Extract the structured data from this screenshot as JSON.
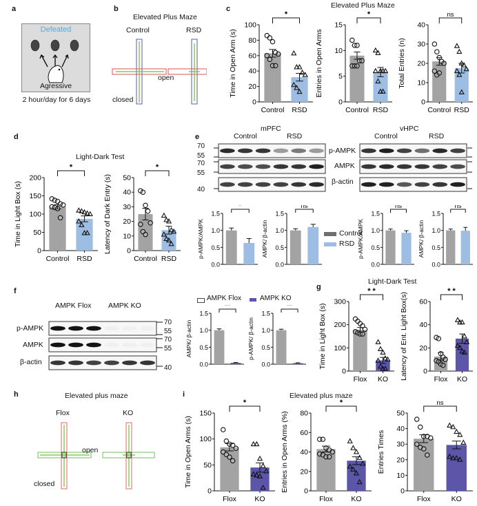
{
  "colors": {
    "control": "#a3a3a3",
    "rsd": "#9dbde3",
    "ko": "#5b56a8",
    "flox": "#a3a3a3",
    "defeated": "#5aa7d8",
    "maze_open_b": "#d9534f",
    "maze_closed_b": "#5a5aa8",
    "maze_h": "#6bbf59",
    "maze_v": "#e26a5a",
    "track": "#6bbf3a"
  },
  "panels": {
    "a": {
      "label": "a",
      "defeated": "Defeated",
      "aggressive": "Agressive",
      "caption": "2 hour/day for 6 days"
    },
    "b": {
      "label": "b",
      "title": "Elevated Plus Maze",
      "groups": [
        "Control",
        "RSD"
      ],
      "open": "open",
      "closed": "closed"
    },
    "c": {
      "label": "c",
      "title": "Elevated Plus Maze"
    },
    "d": {
      "label": "d",
      "title": "Light-Dark Test"
    },
    "e": {
      "label": "e",
      "regions": [
        "mPFC",
        "vHPC"
      ],
      "groups": [
        "Control",
        "RSD"
      ],
      "bands": [
        "p-AMPK",
        "AMPK",
        "β-actin"
      ],
      "markers": [
        "70",
        "55",
        "70",
        "55",
        "40"
      ],
      "legend": [
        "Control",
        "RSD"
      ]
    },
    "f": {
      "label": "f",
      "groups": [
        "AMPK Flox",
        "AMPK KO"
      ],
      "bands": [
        "p-AMPK",
        "AMPK",
        "β-actin"
      ],
      "markers": [
        "70",
        "55",
        "70",
        "55",
        "40"
      ],
      "legend": [
        "AMPK Flox",
        "AMPK KO"
      ]
    },
    "g": {
      "label": "g",
      "title": "Light-Dark Test"
    },
    "h": {
      "label": "h",
      "title": "Elevated plus maze",
      "groups": [
        "Flox",
        "KO"
      ],
      "open": "open",
      "closed": "closed"
    },
    "i": {
      "label": "i",
      "title": "Elevated plus maze"
    }
  },
  "chart_data": [
    {
      "id": "c1",
      "type": "bar",
      "ylabel": "Time in Open Arm (s)",
      "categories": [
        "Control",
        "RSD"
      ],
      "values": [
        63,
        32
      ],
      "sem": [
        5,
        5
      ],
      "ylim": [
        0,
        100
      ],
      "ticks": [
        0,
        20,
        40,
        60,
        80,
        100
      ],
      "sig": "*",
      "points": [
        [
          86,
          83,
          78,
          64,
          62,
          60,
          55,
          47,
          47
        ],
        [
          63,
          45,
          45,
          38,
          35,
          22,
          18,
          13
        ]
      ]
    },
    {
      "id": "c2",
      "type": "bar",
      "ylabel": "Entries in Open Arms",
      "categories": [
        "Control",
        "RSD"
      ],
      "values": [
        9,
        5.8
      ],
      "sem": [
        0.7,
        0.9
      ],
      "ylim": [
        0,
        15
      ],
      "ticks": [
        0,
        5,
        10,
        15
      ],
      "sig": "*",
      "points": [
        [
          12,
          11,
          11,
          8,
          8,
          7,
          7,
          7
        ],
        [
          10,
          9.5,
          6,
          6,
          6,
          6,
          4,
          2,
          2
        ]
      ]
    },
    {
      "id": "c3",
      "type": "bar",
      "ylabel": "Total Entries (n)",
      "categories": [
        "Control",
        "RSD"
      ],
      "values": [
        21,
        17.5
      ],
      "sem": [
        2,
        2.5
      ],
      "ylim": [
        0,
        40
      ],
      "ticks": [
        0,
        10,
        20,
        30,
        40
      ],
      "sig": "ns",
      "points": [
        [
          30,
          26,
          23,
          21,
          20,
          16,
          14,
          15
        ],
        [
          29,
          26,
          20,
          19,
          17,
          16,
          14,
          5
        ]
      ]
    },
    {
      "id": "d1",
      "type": "bar",
      "ylabel": "Time in Light Box (s)",
      "categories": [
        "Control",
        "RSD"
      ],
      "values": [
        120,
        87
      ],
      "sem": [
        6,
        8
      ],
      "ylim": [
        0,
        200
      ],
      "ticks": [
        0,
        50,
        100,
        150,
        200
      ],
      "sig": "*",
      "points": [
        [
          142,
          138,
          135,
          128,
          125,
          120,
          118,
          115,
          90
        ],
        [
          110,
          108,
          105,
          102,
          100,
          80,
          70,
          48,
          48
        ]
      ]
    },
    {
      "id": "d2",
      "type": "bar",
      "ylabel": "Latency of Dark Entry (s)",
      "categories": [
        "Control",
        "RSD"
      ],
      "values": [
        25,
        14
      ],
      "sem": [
        4,
        2.7
      ],
      "ylim": [
        0,
        50
      ],
      "ticks": [
        0,
        10,
        20,
        30,
        40,
        50
      ],
      "sig": "*",
      "points": [
        [
          41,
          40,
          31,
          27,
          19,
          18,
          13,
          11
        ],
        [
          24,
          21,
          20,
          14,
          13,
          11,
          8,
          7,
          4.5
        ]
      ]
    },
    {
      "id": "e1",
      "type": "bar",
      "ylabel": "p-AMPK/AMPK",
      "categories": [
        "Control",
        "RSD"
      ],
      "values": [
        1.0,
        0.63
      ],
      "sem": [
        0.07,
        0.13
      ],
      "ylim": [
        0,
        1.5
      ],
      "ticks": [
        0.0,
        0.5,
        1.0,
        1.5
      ],
      "sig": "*"
    },
    {
      "id": "e2",
      "type": "bar",
      "ylabel": "AMPK/ β-actin",
      "categories": [
        "Control",
        "RSD"
      ],
      "values": [
        1.0,
        1.1
      ],
      "sem": [
        0.05,
        0.08
      ],
      "ylim": [
        0,
        1.5
      ],
      "ticks": [
        0.0,
        0.5,
        1.0,
        1.5
      ],
      "sig": "ns"
    },
    {
      "id": "e3",
      "type": "bar",
      "ylabel": "p-AMPK/AMPK",
      "categories": [
        "Control",
        "RSD"
      ],
      "values": [
        1.0,
        0.93
      ],
      "sem": [
        0.04,
        0.06
      ],
      "ylim": [
        0,
        1.5
      ],
      "ticks": [
        0.0,
        0.5,
        1.0,
        1.5
      ],
      "sig": "ns"
    },
    {
      "id": "e4",
      "type": "bar",
      "ylabel": "AMPK/ β-actin",
      "categories": [
        "Control",
        "RSD"
      ],
      "values": [
        1.0,
        0.99
      ],
      "sem": [
        0.04,
        0.1
      ],
      "ylim": [
        0,
        1.5
      ],
      "ticks": [
        0.0,
        0.5,
        1.0,
        1.5
      ],
      "sig": "ns"
    },
    {
      "id": "f1",
      "type": "bar",
      "ylabel": "AMPK/ β-actin",
      "categories": [
        "AMPK Flox",
        "AMPK KO"
      ],
      "values": [
        1.0,
        0.04
      ],
      "sem": [
        0.04,
        0.01
      ],
      "ylim": [
        0,
        1.5
      ],
      "ticks": [
        0.0,
        0.5,
        1.0,
        1.5
      ],
      "sig": "**"
    },
    {
      "id": "f2",
      "type": "bar",
      "ylabel": "p-AMPK/ β-actin",
      "categories": [
        "AMPK Flox",
        "AMPK KO"
      ],
      "values": [
        1.0,
        0.03
      ],
      "sem": [
        0.03,
        0.01
      ],
      "ylim": [
        0,
        1.5
      ],
      "ticks": [
        0.0,
        0.5,
        1.0,
        1.5
      ],
      "sig": "**"
    },
    {
      "id": "g1",
      "type": "bar",
      "ylabel": "Time in Light Box (s)",
      "categories": [
        "Flox",
        "KO"
      ],
      "values": [
        178,
        46
      ],
      "sem": [
        10,
        13
      ],
      "ylim": [
        0,
        300
      ],
      "ticks": [
        0,
        100,
        200,
        300
      ],
      "sig": "* *",
      "points": [
        [
          225,
          215,
          205,
          195,
          180,
          170,
          165,
          160,
          160
        ],
        [
          125,
          95,
          80,
          55,
          50,
          45,
          20,
          10,
          10
        ]
      ]
    },
    {
      "id": "g2",
      "type": "bar",
      "ylabel": "Latency of Ent. Light Box(s)",
      "categories": [
        "Flox",
        "KO"
      ],
      "values": [
        12.5,
        28
      ],
      "sem": [
        3.5,
        4
      ],
      "ylim": [
        0,
        60
      ],
      "ticks": [
        0,
        20,
        40,
        60
      ],
      "sig": "* *",
      "points": [
        [
          29,
          28,
          15,
          12,
          10,
          9,
          8,
          6,
          5
        ],
        [
          44,
          42,
          42,
          30,
          25,
          22,
          20,
          17,
          16
        ]
      ]
    },
    {
      "id": "i1",
      "type": "bar",
      "ylabel": "Time in Open Arms (s)",
      "categories": [
        "Flox",
        "KO"
      ],
      "values": [
        84,
        45
      ],
      "sem": [
        7,
        9
      ],
      "ylim": [
        0,
        150
      ],
      "ticks": [
        0,
        50,
        100,
        150
      ],
      "sig": "*",
      "points": [
        [
          118,
          96,
          90,
          88,
          82,
          75,
          70,
          65,
          58
        ],
        [
          90,
          90,
          62,
          48,
          38,
          32,
          30,
          28,
          6
        ]
      ]
    },
    {
      "id": "i2",
      "type": "bar",
      "ylabel": "Entries in Open Arms (%)",
      "categories": [
        "Flox",
        "KO"
      ],
      "values": [
        43,
        31
      ],
      "sem": [
        3,
        4
      ],
      "ylim": [
        0,
        80
      ],
      "ticks": [
        0,
        20,
        40,
        60,
        80
      ],
      "sig": "*",
      "points": [
        [
          53,
          53,
          44,
          42,
          40,
          38,
          37,
          35,
          35
        ],
        [
          51,
          44,
          40,
          34,
          28,
          25,
          22,
          18,
          9
        ]
      ]
    },
    {
      "id": "i3",
      "type": "bar",
      "ylabel": "Entries Times",
      "categories": [
        "Flox",
        "KO"
      ],
      "values": [
        33.5,
        29.5
      ],
      "sem": [
        2.5,
        2.5
      ],
      "ylim": [
        0,
        50
      ],
      "ticks": [
        0,
        10,
        20,
        30,
        40,
        50
      ],
      "sig": "ns",
      "points": [
        [
          46,
          41,
          35,
          35,
          34,
          30,
          28,
          27,
          23
        ],
        [
          42,
          41,
          38,
          36,
          31,
          22,
          21,
          21,
          20
        ]
      ]
    }
  ]
}
